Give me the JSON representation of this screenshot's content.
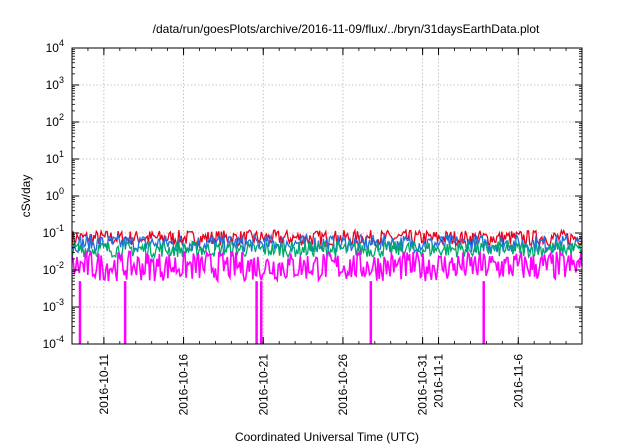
{
  "chart_data": {
    "type": "line",
    "title": "/data/run/goesPlots/archive/2016-11-09/flux/../bryn/31daysEarthData.plot",
    "ylabel": "cSv/day",
    "xlabel": "Coordinated Universal Time (UTC)",
    "y_scale": "log",
    "ylim": [
      0.0001,
      10000
    ],
    "xlim": [
      "2016-10-09",
      "2016-11-10"
    ],
    "grid": true,
    "y_ticks": [
      {
        "base": "10",
        "exp": "-4"
      },
      {
        "base": "10",
        "exp": "-3"
      },
      {
        "base": "10",
        "exp": "-2"
      },
      {
        "base": "10",
        "exp": "-1"
      },
      {
        "base": "10",
        "exp": "0"
      },
      {
        "base": "10",
        "exp": "1"
      },
      {
        "base": "10",
        "exp": "2"
      },
      {
        "base": "10",
        "exp": "3"
      },
      {
        "base": "10",
        "exp": "4"
      }
    ],
    "x_ticks": [
      {
        "label": "2016-10-11",
        "date": "2016-10-11"
      },
      {
        "label": "2016-10-16",
        "date": "2016-10-16"
      },
      {
        "label": "2016-10-21",
        "date": "2016-10-21"
      },
      {
        "label": "2016-10-26",
        "date": "2016-10-26"
      },
      {
        "label": "2016-10-31",
        "date": "2016-10-31"
      },
      {
        "label": "2016-11-1",
        "date": "2016-11-01"
      },
      {
        "label": "2016-11-6",
        "date": "2016-11-06"
      }
    ],
    "series": [
      {
        "color": "#e8001c",
        "level": 0.075,
        "peak": 0.12,
        "floor": 0.045
      },
      {
        "color": "#1f6fe0",
        "level": 0.055,
        "peak": 0.09,
        "floor": 0.03
      },
      {
        "color": "#00a86b",
        "level": 0.04,
        "peak": 0.06,
        "floor": 0.022
      },
      {
        "color": "#ff00ff",
        "level": 0.012,
        "peak": 0.032,
        "floor": 0.005
      }
    ],
    "dropouts": [
      "2016-10-09T12:00",
      "2016-10-12T08:00",
      "2016-10-20T14:00",
      "2016-10-20T21:00",
      "2016-10-27T18:00",
      "2016-11-03T20:00"
    ],
    "dropout_value": 0.0001
  }
}
